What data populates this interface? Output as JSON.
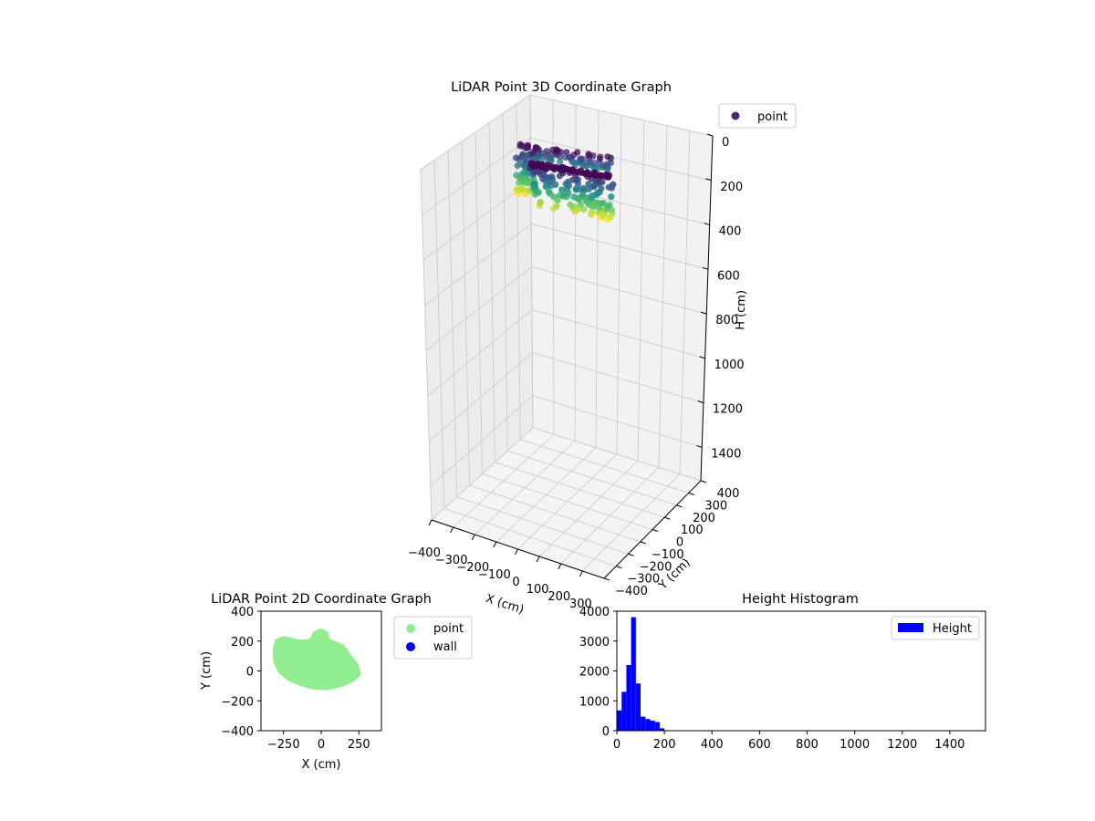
{
  "chart_data": [
    {
      "type": "scatter3d",
      "title": "LiDAR Point 3D Coordinate Graph",
      "xlabel": "X (cm)",
      "ylabel": "Y (cm)",
      "zlabel": "H (cm)",
      "x_ticks": [
        -400,
        -300,
        -200,
        -100,
        0,
        100,
        200,
        300
      ],
      "y_ticks": [
        -400,
        -300,
        -200,
        -100,
        0,
        100,
        200,
        300,
        400
      ],
      "z_ticks": [
        0,
        200,
        400,
        600,
        800,
        1000,
        1200,
        1400
      ],
      "x_tick_labels": [
        "−400",
        "−300",
        "−200",
        "−100",
        "0",
        "100",
        "200",
        "300"
      ],
      "y_tick_labels": [
        "−400",
        "−300",
        "−200",
        "−100",
        "0",
        "100",
        "200",
        "300",
        "400"
      ],
      "z_tick_labels": [
        "0",
        "200",
        "400",
        "600",
        "800",
        "1000",
        "1200",
        "1400"
      ],
      "xlim": [
        -400,
        400
      ],
      "ylim": [
        -400,
        400
      ],
      "zlim": [
        0,
        1550
      ],
      "z_inverted": true,
      "colormap": "viridis",
      "grid": true,
      "legend": {
        "entries": [
          "point"
        ],
        "placement": "top-right",
        "marker_color": "#482878"
      }
    },
    {
      "type": "scatter",
      "title": "LiDAR Point 2D Coordinate Graph",
      "xlabel": "X (cm)",
      "ylabel": "Y (cm)",
      "xlim": [
        -400,
        400
      ],
      "ylim": [
        -400,
        400
      ],
      "x_ticks": [
        -250,
        0,
        250
      ],
      "x_tick_labels": [
        "−250",
        "0",
        "250"
      ],
      "y_ticks": [
        -400,
        -200,
        0,
        200,
        400
      ],
      "y_tick_labels": [
        "−400",
        "−200",
        "0",
        "200",
        "400"
      ],
      "series": [
        {
          "name": "point",
          "color": "#90ee90",
          "outline": [
            [
              -290,
              200
            ],
            [
              -250,
              215
            ],
            [
              -200,
              205
            ],
            [
              -160,
              195
            ],
            [
              -100,
              190
            ],
            [
              -60,
              205
            ],
            [
              -40,
              250
            ],
            [
              0,
              265
            ],
            [
              30,
              250
            ],
            [
              40,
              200
            ],
            [
              80,
              185
            ],
            [
              140,
              160
            ],
            [
              180,
              100
            ],
            [
              230,
              40
            ],
            [
              245,
              -20
            ],
            [
              200,
              -60
            ],
            [
              130,
              -90
            ],
            [
              40,
              -110
            ],
            [
              -60,
              -105
            ],
            [
              -140,
              -80
            ],
            [
              -210,
              -50
            ],
            [
              -270,
              0
            ],
            [
              -300,
              60
            ],
            [
              -305,
              140
            ]
          ]
        },
        {
          "name": "wall",
          "color": "#0000ff",
          "points": []
        }
      ],
      "legend": {
        "entries": [
          "point",
          "wall"
        ],
        "placement": "outside-right"
      }
    },
    {
      "type": "histogram",
      "title": "Height Histogram",
      "xlim": [
        0,
        1550
      ],
      "ylim": [
        0,
        4000
      ],
      "x_ticks": [
        0,
        200,
        400,
        600,
        800,
        1000,
        1200,
        1400
      ],
      "x_tick_labels": [
        "0",
        "200",
        "400",
        "600",
        "800",
        "1000",
        "1200",
        "1400"
      ],
      "y_ticks": [
        0,
        1000,
        2000,
        3000,
        4000
      ],
      "y_tick_labels": [
        "0",
        "1000",
        "2000",
        "3000",
        "4000"
      ],
      "bin_edges": [
        0,
        20,
        40,
        60,
        80,
        100,
        120,
        140,
        160,
        180,
        200,
        220
      ],
      "values": [
        680,
        1300,
        2200,
        3800,
        1580,
        470,
        390,
        340,
        290,
        80,
        0
      ],
      "color": "#0000ff",
      "legend": {
        "entries": [
          "Height"
        ],
        "placement": "top-right"
      }
    }
  ]
}
